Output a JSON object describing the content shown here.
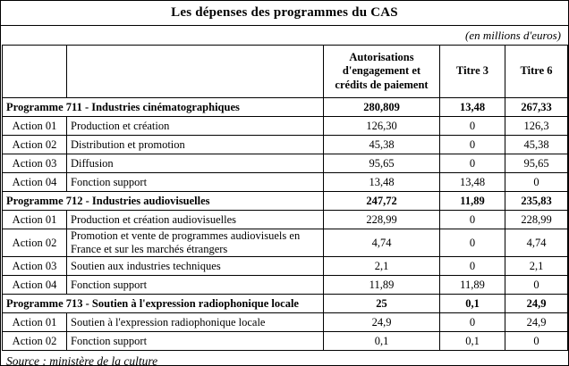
{
  "title": "Les dépenses des programmes du CAS",
  "unit_note": "(en millions d'euros)",
  "source": "Source : ministère de la culture",
  "table": {
    "header_col1": "",
    "header_col2": "",
    "header_autorisations": "Autorisations d'engagement et crédits de paiement",
    "header_titre3": "Titre 3",
    "header_titre6": "Titre 6",
    "rows": [
      {
        "type": "program",
        "label": "Programme 711 - Industries cinématographiques",
        "values": [
          "280,809",
          "13,48",
          "267,33"
        ]
      },
      {
        "type": "action",
        "code": "Action 01",
        "label": "Production et création",
        "values": [
          "126,30",
          "0",
          "126,3"
        ]
      },
      {
        "type": "action",
        "code": "Action 02",
        "label": "Distribution et promotion",
        "values": [
          "45,38",
          "0",
          "45,38"
        ]
      },
      {
        "type": "action",
        "code": "Action 03",
        "label": "Diffusion",
        "values": [
          "95,65",
          "0",
          "95,65"
        ]
      },
      {
        "type": "action",
        "code": "Action 04",
        "label": "Fonction support",
        "values": [
          "13,48",
          "13,48",
          "0"
        ]
      },
      {
        "type": "program",
        "label": "Programme 712 - Industries audiovisuelles",
        "values": [
          "247,72",
          "11,89",
          "235,83"
        ]
      },
      {
        "type": "action",
        "code": "Action 01",
        "label": "Production et création audiovisuelles",
        "values": [
          "228,99",
          "0",
          "228,99"
        ]
      },
      {
        "type": "action",
        "code": "Action 02",
        "label": "Promotion et vente de programmes audiovisuels en France et sur les marchés étrangers",
        "values": [
          "4,74",
          "0",
          "4,74"
        ]
      },
      {
        "type": "action",
        "code": "Action 03",
        "label": "Soutien aux industries techniques",
        "values": [
          "2,1",
          "0",
          "2,1"
        ]
      },
      {
        "type": "action",
        "code": "Action 04",
        "label": "Fonction support",
        "values": [
          "11,89",
          "11,89",
          "0"
        ]
      },
      {
        "type": "program",
        "label": "Programme 713 - Soutien à l'expression radiophonique locale",
        "values": [
          "25",
          "0,1",
          "24,9"
        ]
      },
      {
        "type": "action",
        "code": "Action 01",
        "label": "Soutien à l'expression radiophonique locale",
        "values": [
          "24,9",
          "0",
          "24,9"
        ]
      },
      {
        "type": "action",
        "code": "Action 02",
        "label": "Fonction support",
        "values": [
          "0,1",
          "0,1",
          "0"
        ]
      }
    ]
  }
}
